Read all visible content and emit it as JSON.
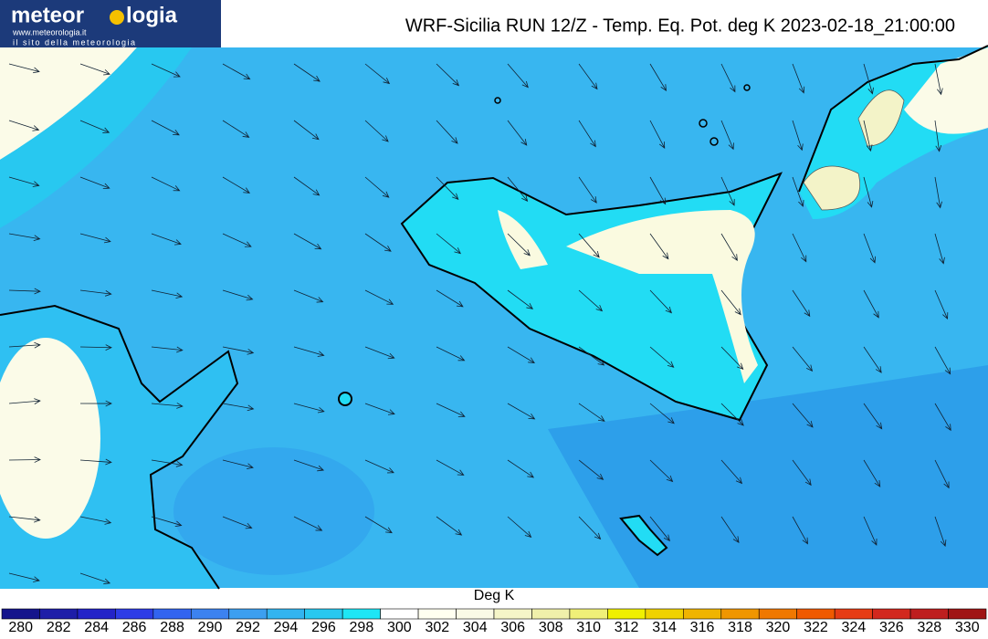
{
  "logo": {
    "name_start": "meteor",
    "name_end": "logia",
    "url": "www.meteorologia.it",
    "tagline": "il sito della meteorologia"
  },
  "header": {
    "title": "WRF-Sicilia RUN 12/Z - Temp. Eq. Pot. deg K 2023-02-18_21:00:00"
  },
  "colorbar": {
    "label": "Deg K",
    "ticks": [
      280,
      282,
      284,
      286,
      288,
      290,
      292,
      294,
      296,
      298,
      300,
      302,
      304,
      306,
      308,
      310,
      312,
      314,
      316,
      318,
      320,
      322,
      324,
      326,
      328,
      330
    ],
    "colors": [
      "#14148c",
      "#1e1ea8",
      "#2323c8",
      "#2d3ce6",
      "#3264f0",
      "#3c82f0",
      "#3c9ff0",
      "#32b4f0",
      "#28c8f0",
      "#1ee6f5",
      "#ffffff",
      "#fffff0",
      "#fafae6",
      "#f5f5c8",
      "#f0f0aa",
      "#f0f078",
      "#f0f000",
      "#f0d200",
      "#f0b400",
      "#f09600",
      "#f07800",
      "#f05a00",
      "#e63c14",
      "#d2281e",
      "#be1e1e",
      "#a01414"
    ]
  }
}
